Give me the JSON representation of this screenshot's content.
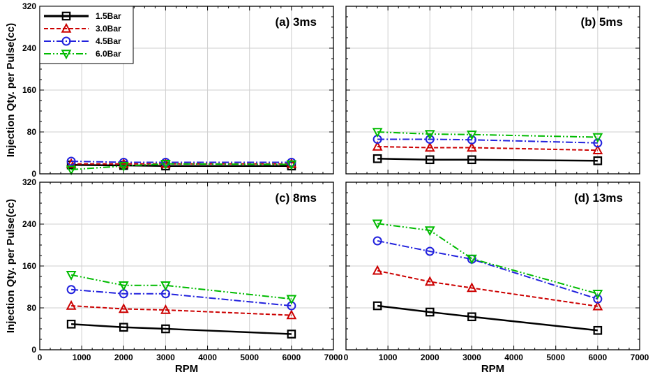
{
  "chart_data": {
    "type": "line",
    "ylabel": "Injection Qty. per Pulse(cc)",
    "xlabel": "RPM",
    "xlim": [
      0,
      7000
    ],
    "ylim": [
      0,
      320
    ],
    "xticks": [
      0,
      1000,
      2000,
      3000,
      4000,
      5000,
      6000,
      7000
    ],
    "yticks": [
      0,
      80,
      160,
      240,
      320
    ],
    "grid": true,
    "legend": {
      "position": "top-left",
      "entries": [
        {
          "name": "1.5Bar",
          "color": "#000000",
          "marker": "square",
          "dash": "solid"
        },
        {
          "name": "3.0Bar",
          "color": "#cc0000",
          "marker": "triangle-up",
          "dash": "dashed"
        },
        {
          "name": "4.5Bar",
          "color": "#2222dd",
          "marker": "circle",
          "dash": "dash-dot"
        },
        {
          "name": "6.0Bar",
          "color": "#00bb00",
          "marker": "triangle-down",
          "dash": "dash-dot-dot"
        }
      ]
    },
    "panels": [
      {
        "title": "(a) 3ms",
        "x": [
          750,
          2000,
          3000,
          6000
        ],
        "series": [
          {
            "name": "1.5Bar",
            "values": [
              17,
              16,
              15,
              15
            ]
          },
          {
            "name": "3.0Bar",
            "values": [
              19,
              19,
              19,
              19
            ]
          },
          {
            "name": "4.5Bar",
            "values": [
              24,
              22,
              22,
              22
            ]
          },
          {
            "name": "6.0Bar",
            "values": [
              8,
              15,
              19,
              18
            ]
          }
        ]
      },
      {
        "title": "(b) 5ms",
        "x": [
          750,
          2000,
          3000,
          6000
        ],
        "series": [
          {
            "name": "1.5Bar",
            "values": [
              29,
              27,
              27,
              25
            ]
          },
          {
            "name": "3.0Bar",
            "values": [
              52,
              50,
              50,
              45
            ]
          },
          {
            "name": "4.5Bar",
            "values": [
              66,
              66,
              65,
              59
            ]
          },
          {
            "name": "6.0Bar",
            "values": [
              80,
              76,
              75,
              70
            ]
          }
        ]
      },
      {
        "title": "(c) 8ms",
        "x": [
          750,
          2000,
          3000,
          6000
        ],
        "series": [
          {
            "name": "1.5Bar",
            "values": [
              49,
              43,
              40,
              30
            ]
          },
          {
            "name": "3.0Bar",
            "values": [
              84,
              78,
              76,
              66
            ]
          },
          {
            "name": "4.5Bar",
            "values": [
              115,
              107,
              107,
              84
            ]
          },
          {
            "name": "6.0Bar",
            "values": [
              143,
              123,
              123,
              97
            ]
          }
        ]
      },
      {
        "title": "(d) 13ms",
        "x": [
          750,
          2000,
          3000,
          6000
        ],
        "series": [
          {
            "name": "1.5Bar",
            "values": [
              84,
              72,
              63,
              37
            ]
          },
          {
            "name": "3.0Bar",
            "values": [
              151,
              130,
              118,
              83
            ]
          },
          {
            "name": "4.5Bar",
            "values": [
              208,
              188,
              173,
              97
            ]
          },
          {
            "name": "6.0Bar",
            "values": [
              241,
              228,
              174,
              107
            ]
          }
        ]
      }
    ]
  }
}
